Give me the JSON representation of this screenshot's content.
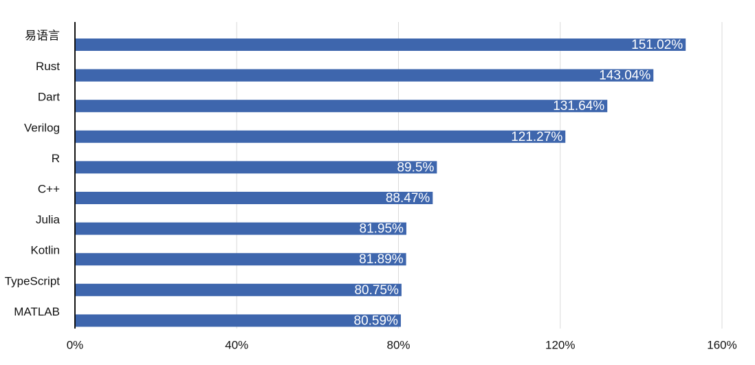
{
  "chart_data": {
    "type": "bar",
    "orientation": "horizontal",
    "categories": [
      "易语言",
      "Rust",
      "Dart",
      "Verilog",
      "R",
      "C++",
      "Julia",
      "Kotlin",
      "TypeScript",
      "MATLAB"
    ],
    "values": [
      151.02,
      143.04,
      131.64,
      121.27,
      89.5,
      88.47,
      81.95,
      81.89,
      80.75,
      80.59
    ],
    "value_labels": [
      "151.02%",
      "143.04%",
      "131.64%",
      "121.27%",
      "89.5%",
      "88.47%",
      "81.95%",
      "81.89%",
      "80.75%",
      "80.59%"
    ],
    "xlim": [
      0,
      160
    ],
    "x_ticks": [
      0,
      40,
      80,
      120,
      160
    ],
    "x_tick_labels": [
      "0%",
      "40%",
      "80%",
      "120%",
      "160%"
    ],
    "grid": true,
    "legend": "none",
    "bar_color": "#3e66ad",
    "title": "",
    "xlabel": "",
    "ylabel": ""
  }
}
